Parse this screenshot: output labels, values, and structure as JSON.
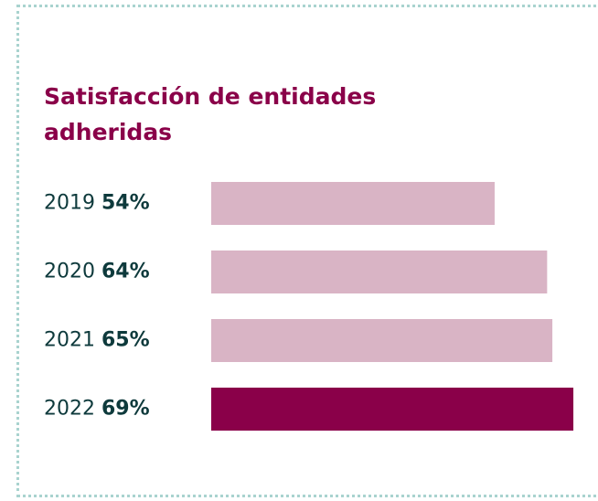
{
  "chart_data": {
    "type": "bar",
    "orientation": "horizontal",
    "title": "Satisfacción de entidades adheridas",
    "categories": [
      "2019",
      "2020",
      "2021",
      "2022"
    ],
    "values": [
      54,
      64,
      65,
      69
    ],
    "value_labels": [
      "54%",
      "64%",
      "65%",
      "69%"
    ],
    "colors": [
      "#d9b4c5",
      "#d9b4c5",
      "#d9b4c5",
      "#8a0049"
    ]
  }
}
